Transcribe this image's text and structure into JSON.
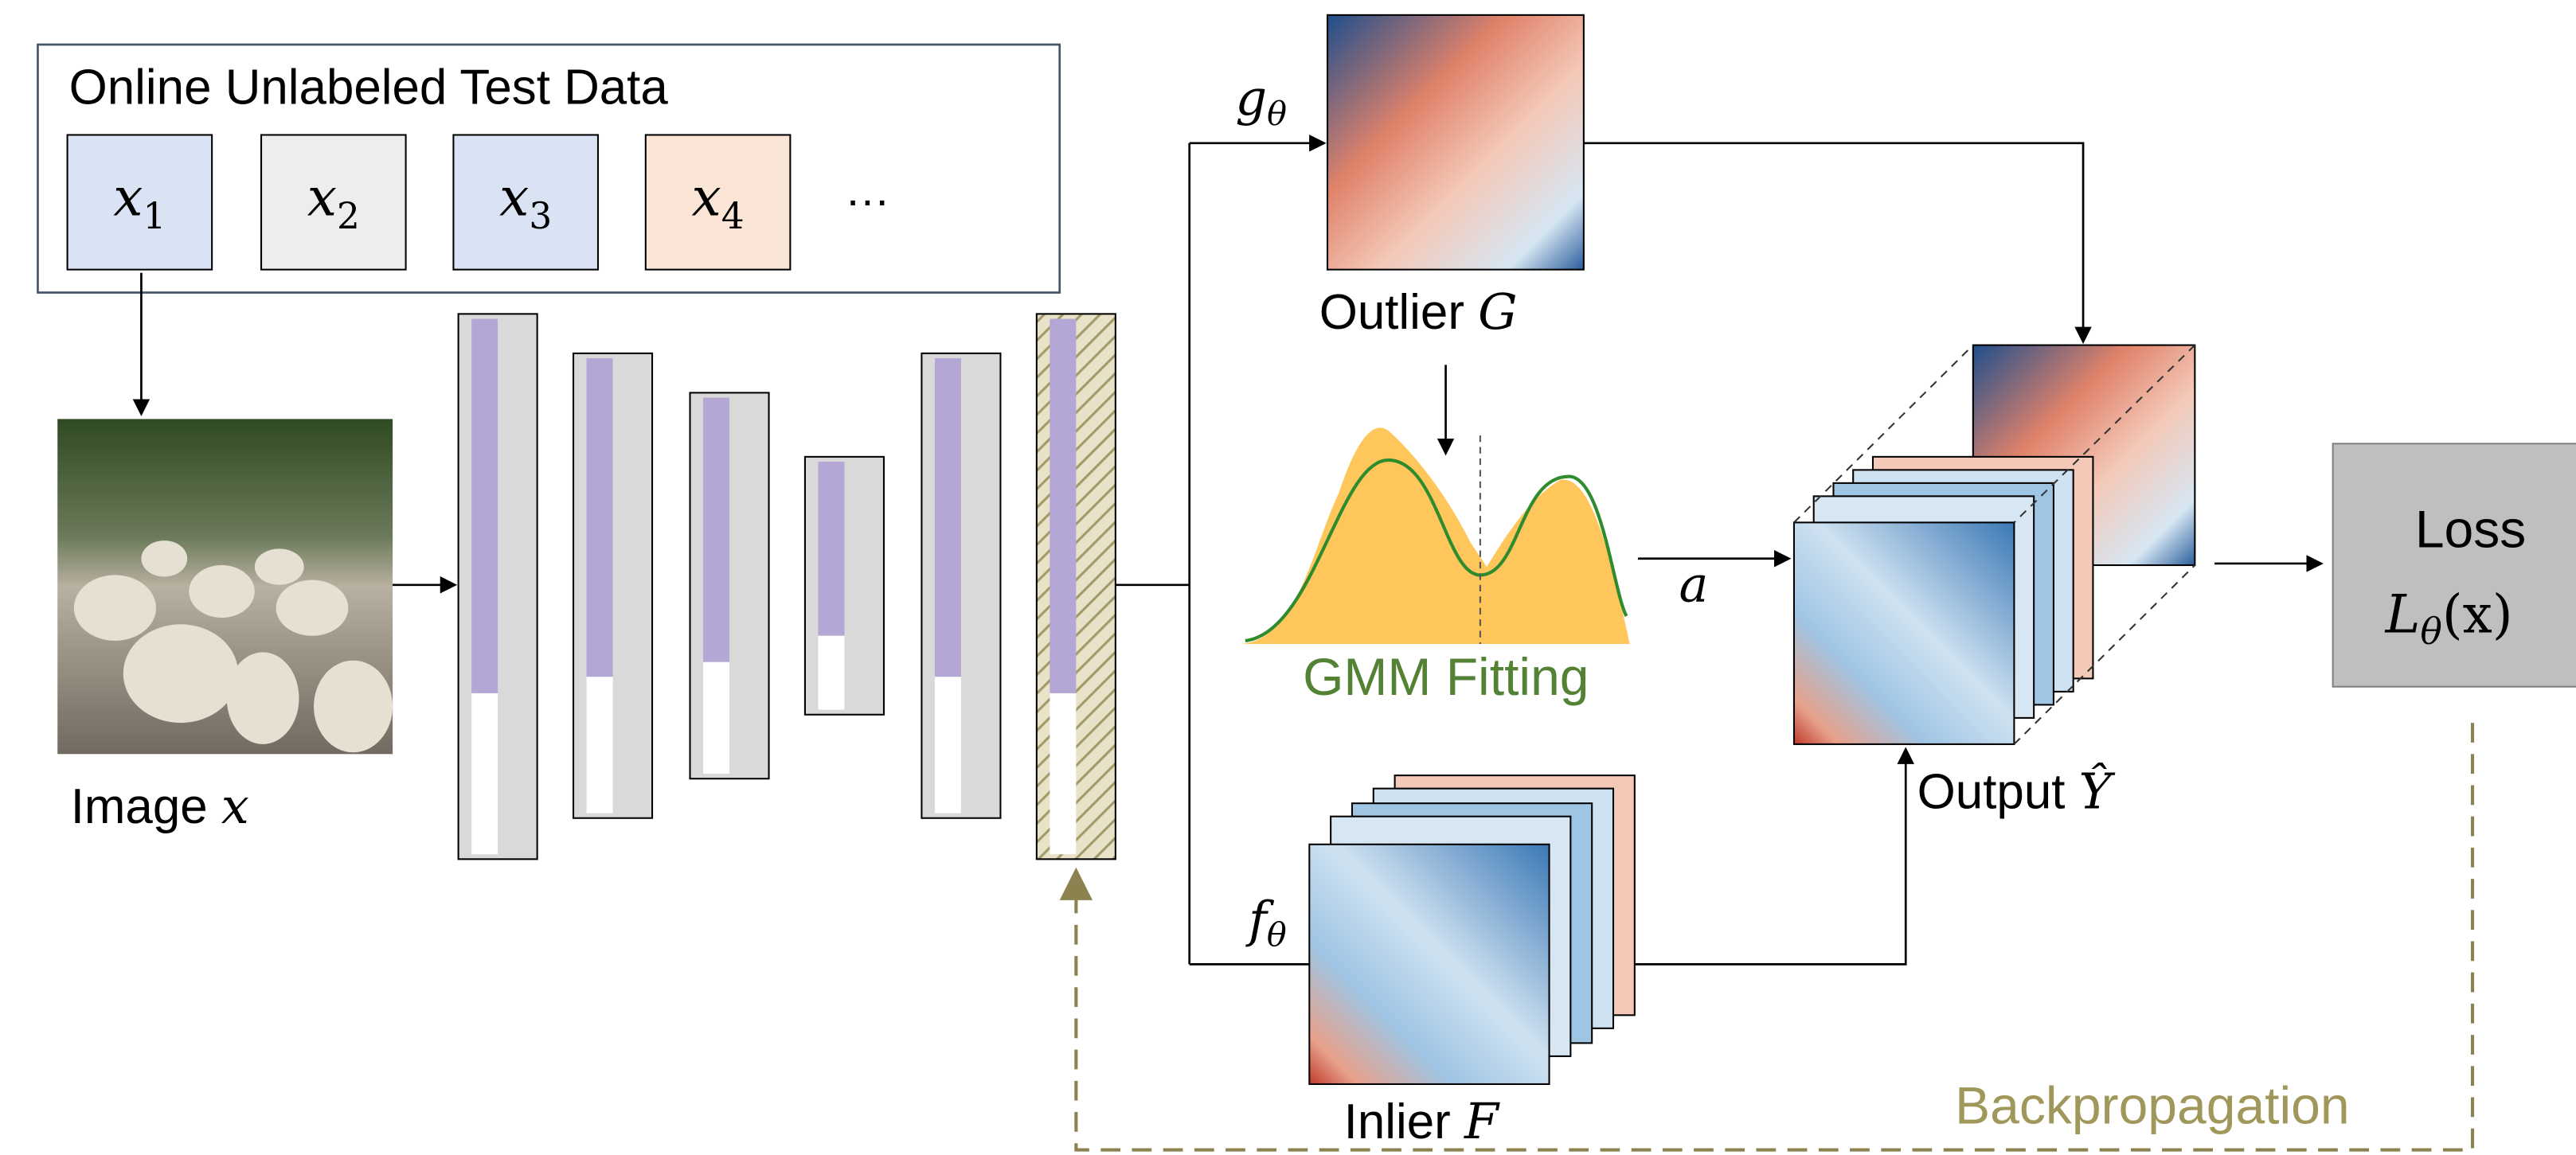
{
  "input_panel": {
    "title": "Online Unlabeled Test Data",
    "samples": [
      {
        "var": "x",
        "sub": "1"
      },
      {
        "var": "x",
        "sub": "2"
      },
      {
        "var": "x",
        "sub": "3"
      },
      {
        "var": "x",
        "sub": "4"
      }
    ],
    "ellipsis": "…"
  },
  "image": {
    "label": "Image",
    "var": "x"
  },
  "heads": {
    "outlier": {
      "var": "g",
      "sub": "θ"
    },
    "inlier": {
      "var": "f",
      "sub": "θ"
    }
  },
  "outlier": {
    "label": "Outlier",
    "var": "G"
  },
  "gmm": {
    "label": "GMM Fitting",
    "param": "a"
  },
  "inlier": {
    "label": "Inlier",
    "var": "F"
  },
  "output": {
    "label": "Output",
    "var": "Ŷ"
  },
  "loss": {
    "title": "Loss",
    "var": "L",
    "sub": "θ",
    "arg": "(x)"
  },
  "backprop": "Backpropagation"
}
